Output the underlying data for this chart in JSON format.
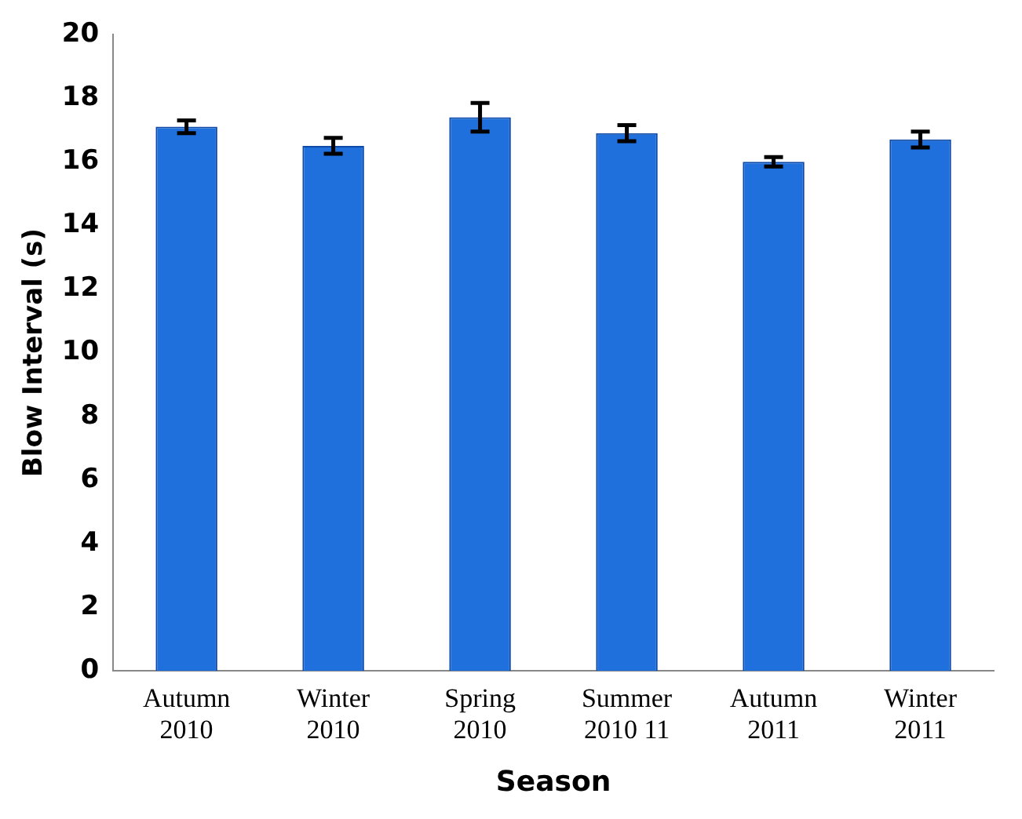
{
  "chart_data": {
    "type": "bar",
    "xlabel": "Season",
    "ylabel": "Blow Interval (s)",
    "categories": [
      "Autumn 2010",
      "Winter 2010",
      "Spring 2010",
      "Summer 2010 11",
      "Autumn 2011",
      "Winter 2011"
    ],
    "values": [
      17.1,
      16.5,
      17.4,
      16.9,
      16.0,
      16.7
    ],
    "errors": [
      0.2,
      0.25,
      0.45,
      0.25,
      0.15,
      0.25
    ],
    "color": "#1f6fdc",
    "ylim": [
      0,
      20
    ],
    "yticks": [
      0,
      2,
      4,
      6,
      8,
      10,
      12,
      14,
      16,
      18,
      20
    ],
    "grid": false
  }
}
